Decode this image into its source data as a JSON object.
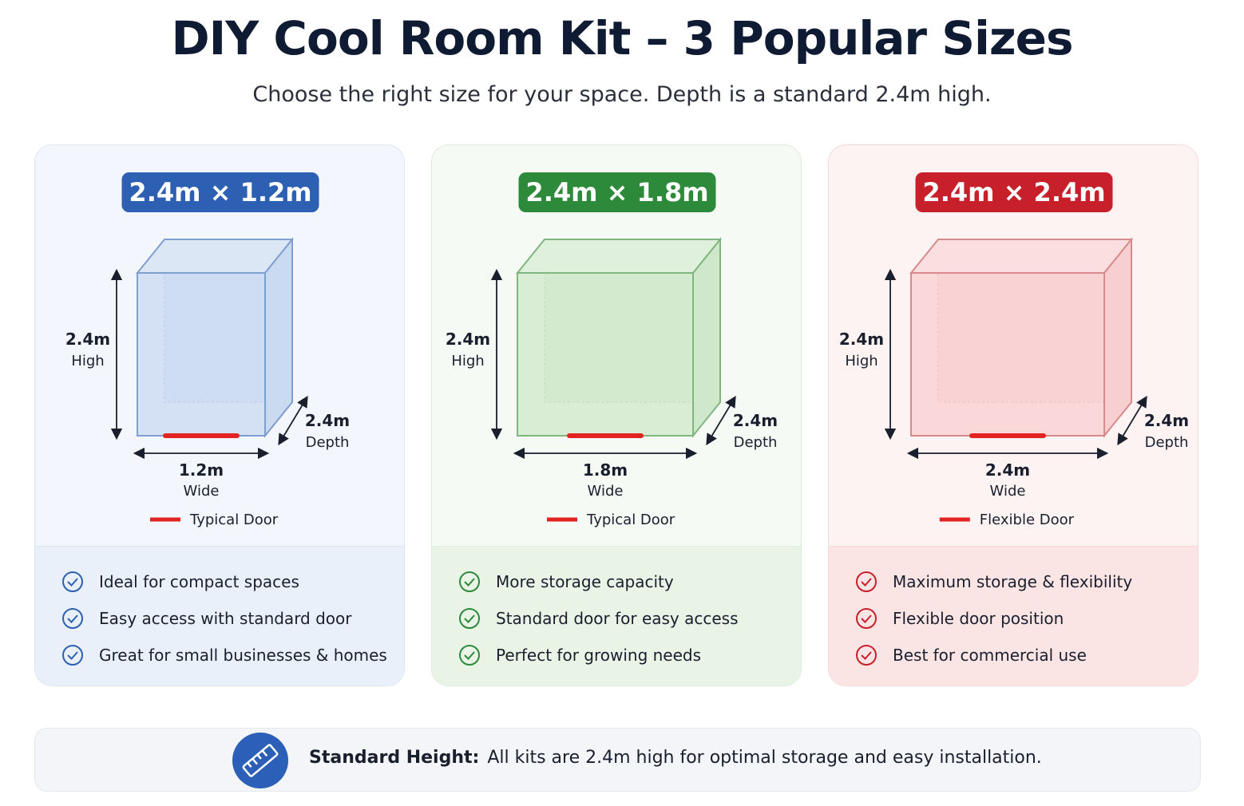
{
  "header": {
    "title": "DIY Cool Room Kit – 3 Popular Sizes",
    "subtitle": "Choose the right size for your space. Depth is a standard 2.4m high."
  },
  "cards": [
    {
      "badge": "2.4m × 1.2m",
      "height_value": "2.4m",
      "height_label": "High",
      "depth_value": "2.4m",
      "depth_label": "Depth",
      "width_value": "1.2m",
      "width_label": "Wide",
      "door_label": "Typical Door",
      "features": [
        "Ideal for compact spaces",
        "Easy access with standard door",
        "Great for small businesses & homes"
      ]
    },
    {
      "badge": "2.4m × 1.8m",
      "height_value": "2.4m",
      "height_label": "High",
      "depth_value": "2.4m",
      "depth_label": "Depth",
      "width_value": "1.8m",
      "width_label": "Wide",
      "door_label": "Typical Door",
      "features": [
        "More storage capacity",
        "Standard door for easy access",
        "Perfect for growing needs"
      ]
    },
    {
      "badge": "2.4m × 2.4m",
      "height_value": "2.4m",
      "height_label": "High",
      "depth_value": "2.4m",
      "depth_label": "Depth",
      "width_value": "2.4m",
      "width_label": "Wide",
      "door_label": "Flexible Door",
      "features": [
        "Maximum storage & flexibility",
        "Flexible door position",
        "Best for commercial use"
      ]
    }
  ],
  "footer": {
    "label": "Standard Height:",
    "text": "All kits are 2.4m high for optimal storage and easy installation."
  }
}
